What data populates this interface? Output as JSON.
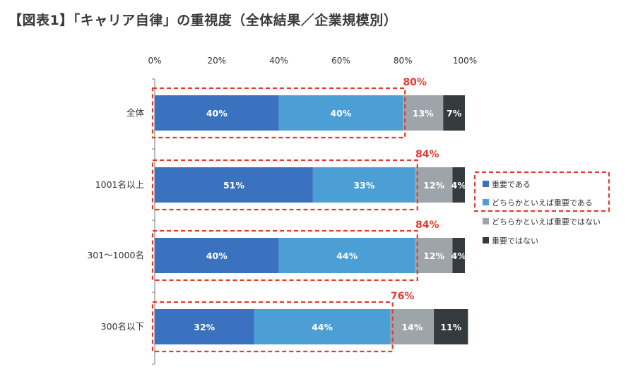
{
  "title": "【図表1】「キャリア自律」の重視度（全体結果／企業規模別）",
  "chart_data": {
    "type": "bar",
    "orientation": "horizontal",
    "stacked": true,
    "xlim": [
      0,
      100
    ],
    "x_ticks": [
      "0%",
      "20%",
      "40%",
      "60%",
      "80%",
      "100%"
    ],
    "categories": [
      "全体",
      "1001名以上",
      "301〜1000名",
      "300名以下"
    ],
    "series": [
      {
        "name": "重要である",
        "values": [
          40,
          51,
          40,
          32
        ],
        "labels": [
          "40%",
          "51%",
          "40%",
          "32%"
        ],
        "color": "#3a72c0"
      },
      {
        "name": "どちらかといえば重要である",
        "values": [
          40,
          33,
          44,
          44
        ],
        "labels": [
          "40%",
          "33%",
          "44%",
          "44%"
        ],
        "color": "#4b9fd4"
      },
      {
        "name": "どちらかといえば重要ではない",
        "values": [
          13,
          12,
          12,
          14
        ],
        "labels": [
          "13%",
          "12%",
          "12%",
          "14%"
        ],
        "color": "#9ea5aa"
      },
      {
        "name": "重要ではない",
        "values": [
          7,
          4,
          4,
          11
        ],
        "labels": [
          "7%",
          "4%",
          "4%",
          "11%"
        ],
        "color": "#353a3d"
      }
    ],
    "highlight_totals": [
      "80%",
      "84%",
      "84%",
      "76%"
    ],
    "highlight_color": "#e03c31",
    "legend_position": "right"
  }
}
